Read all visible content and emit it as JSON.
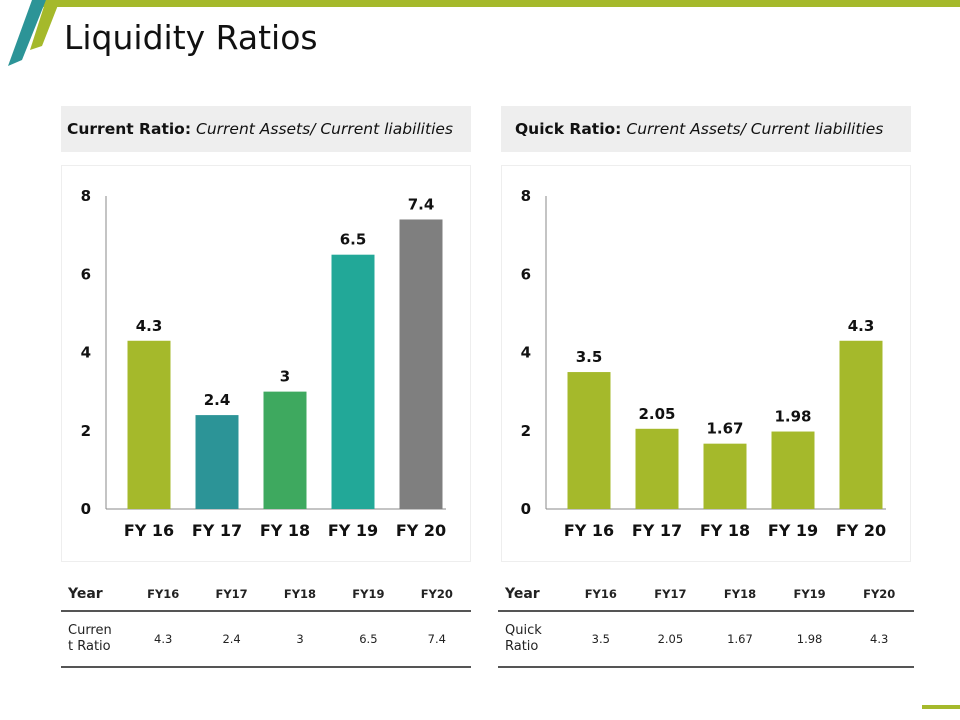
{
  "title": "Liquidity Ratios",
  "colors": {
    "accent": "#a5b92b",
    "teal": "#2c9497",
    "green": "#3ea95f",
    "turquoise": "#22a898",
    "gray": "#7f7f7f"
  },
  "left": {
    "header_bold": "Current Ratio:",
    "header_italic": "Current Assets/ Current liabilities",
    "table": {
      "header_label": "Year",
      "years": [
        "FY16",
        "FY17",
        "FY18",
        "FY19",
        "FY20"
      ],
      "row_label_line1": "Curren",
      "row_label_line2": "t Ratio",
      "values": [
        "4.3",
        "2.4",
        "3",
        "6.5",
        "7.4"
      ]
    }
  },
  "right": {
    "header_bold": "Quick Ratio:",
    "header_italic": "Current Assets/ Current liabilities",
    "table": {
      "header_label": "Year",
      "years": [
        "FY16",
        "FY17",
        "FY18",
        "FY19",
        "FY20"
      ],
      "row_label_line1": "Quick",
      "row_label_line2": "Ratio",
      "values": [
        "3.5",
        "2.05",
        "1.67",
        "1.98",
        "4.3"
      ]
    }
  },
  "chart_data": [
    {
      "type": "bar",
      "title": "Current Ratio: Current Assets/ Current liabilities",
      "categories": [
        "FY 16",
        "FY 17",
        "FY 18",
        "FY 19",
        "FY 20"
      ],
      "values": [
        4.3,
        2.4,
        3,
        6.5,
        7.4
      ],
      "labels": [
        "4.3",
        "2.4",
        "3",
        "6.5",
        "7.4"
      ],
      "bar_colors": [
        "#a5b92b",
        "#2c9497",
        "#3ea95f",
        "#22a898",
        "#7f7f7f"
      ],
      "yticks": [
        "0",
        "2",
        "4",
        "6",
        "8"
      ],
      "ylim": [
        0,
        8
      ],
      "xlabel": "",
      "ylabel": "",
      "grid": false
    },
    {
      "type": "bar",
      "title": "Quick Ratio: Current Assets/ Current liabilities",
      "categories": [
        "FY 16",
        "FY 17",
        "FY 18",
        "FY 19",
        "FY 20"
      ],
      "values": [
        3.5,
        2.05,
        1.67,
        1.98,
        4.3
      ],
      "labels": [
        "3.5",
        "2.05",
        "1.67",
        "1.98",
        "4.3"
      ],
      "bar_colors": [
        "#a5b92b",
        "#a5b92b",
        "#a5b92b",
        "#a5b92b",
        "#a5b92b"
      ],
      "yticks": [
        "0",
        "2",
        "4",
        "6",
        "8"
      ],
      "ylim": [
        0,
        8
      ],
      "xlabel": "",
      "ylabel": "",
      "grid": false
    }
  ]
}
